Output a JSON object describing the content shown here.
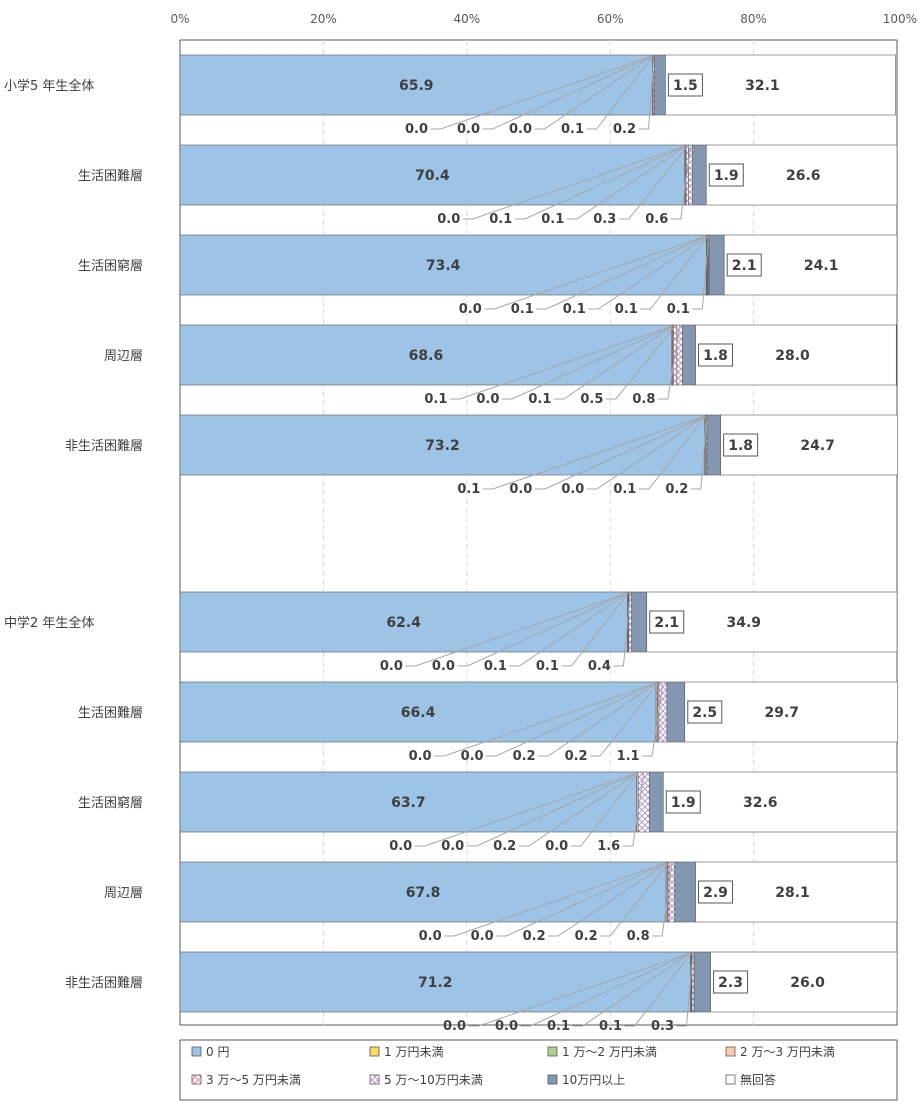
{
  "chart_data": {
    "type": "bar",
    "orientation": "horizontal",
    "stacked": "percent",
    "title": "",
    "xlabel": "",
    "ylabel": "",
    "xlim": [
      0,
      100
    ],
    "x_ticks": [
      "0%",
      "20%",
      "40%",
      "60%",
      "80%",
      "100%"
    ],
    "grid": "vertical dashed",
    "legend_position": "bottom",
    "groups": [
      {
        "name": "小学5年生",
        "categories": [
          "小学5 年生全体",
          "生活困難層",
          "生活困窮層",
          "周辺層",
          "非生活困難層"
        ]
      },
      {
        "name": "中学2年生",
        "categories": [
          "中学2 年生全体",
          "生活困難層",
          "生活困窮層",
          "周辺層",
          "非生活困難層"
        ]
      }
    ],
    "categories": [
      "小学5 年生全体",
      "生活困難層",
      "生活困窮層",
      "周辺層",
      "非生活困難層",
      "中学2 年生全体",
      "生活困難層",
      "生活困窮層",
      "周辺層",
      "非生活困難層"
    ],
    "series": [
      {
        "name": "0 円",
        "color": "#9dc3e6",
        "values": [
          65.9,
          70.4,
          73.4,
          68.6,
          73.2,
          62.4,
          66.4,
          63.7,
          67.8,
          71.2
        ]
      },
      {
        "name": "1 万円未満",
        "color": "#ffd966",
        "values": [
          0.0,
          0.0,
          0.0,
          0.1,
          0.1,
          0.0,
          0.0,
          0.0,
          0.0,
          0.0
        ]
      },
      {
        "name": "1 万～2 万円未満",
        "color": "#a9d18e",
        "values": [
          0.0,
          0.1,
          0.1,
          0.0,
          0.0,
          0.0,
          0.0,
          0.0,
          0.0,
          0.0
        ]
      },
      {
        "name": "2 万～3 万円未満",
        "color": "#f8cbad",
        "values": [
          0.0,
          0.1,
          0.1,
          0.1,
          0.0,
          0.1,
          0.2,
          0.2,
          0.2,
          0.1
        ]
      },
      {
        "name": "3 万～5 万円未満",
        "color": "#f4b6d2",
        "values": [
          0.1,
          0.3,
          0.1,
          0.5,
          0.1,
          0.1,
          0.2,
          0.0,
          0.2,
          0.1
        ]
      },
      {
        "name": "5 万～10万円未満",
        "color": "#e7d6f0",
        "values": [
          0.2,
          0.6,
          0.1,
          0.8,
          0.2,
          0.4,
          1.1,
          1.6,
          0.8,
          0.3
        ]
      },
      {
        "name": "10万円以上",
        "color": "#8497b0",
        "values": [
          1.5,
          1.9,
          2.1,
          1.8,
          1.8,
          2.1,
          2.5,
          1.9,
          2.9,
          2.3
        ]
      },
      {
        "name": "無回答",
        "color": "#ffffff",
        "values": [
          32.1,
          26.6,
          24.1,
          28.0,
          24.7,
          34.9,
          29.7,
          32.6,
          28.1,
          26.0
        ]
      }
    ],
    "small_label_text": [
      [
        "0.0",
        "0.0",
        "0.0",
        "0.1",
        "0.2"
      ],
      [
        "0.0",
        "0.1",
        "0.1",
        "0.3",
        "0.6"
      ],
      [
        "0.0",
        "0.1",
        "0.1",
        "0.1",
        "0.1"
      ],
      [
        "0.1",
        "0.0",
        "0.1",
        "0.5",
        "0.8"
      ],
      [
        "0.1",
        "0.0",
        "0.0",
        "0.1",
        "0.2"
      ],
      [
        "0.0",
        "0.0",
        "0.1",
        "0.1",
        "0.4"
      ],
      [
        "0.0",
        "0.0",
        "0.2",
        "0.2",
        "1.1"
      ],
      [
        "0.0",
        "0.0",
        "0.2",
        "0.0",
        "1.6"
      ],
      [
        "0.0",
        "0.0",
        "0.2",
        "0.2",
        "0.8"
      ],
      [
        "0.0",
        "0.0",
        "0.1",
        "0.1",
        "0.3"
      ]
    ],
    "value_labels": {
      "zero_yen": [
        "65.9",
        "70.4",
        "73.4",
        "68.6",
        "73.2",
        "62.4",
        "66.4",
        "63.7",
        "67.8",
        "71.2"
      ],
      "over_100k": [
        "1.5",
        "1.9",
        "2.1",
        "1.8",
        "1.8",
        "2.1",
        "2.5",
        "1.9",
        "2.9",
        "2.3"
      ],
      "no_answer": [
        "32.1",
        "26.6",
        "24.1",
        "28.0",
        "24.7",
        "34.9",
        "29.7",
        "32.6",
        "28.1",
        "26.0"
      ]
    }
  }
}
